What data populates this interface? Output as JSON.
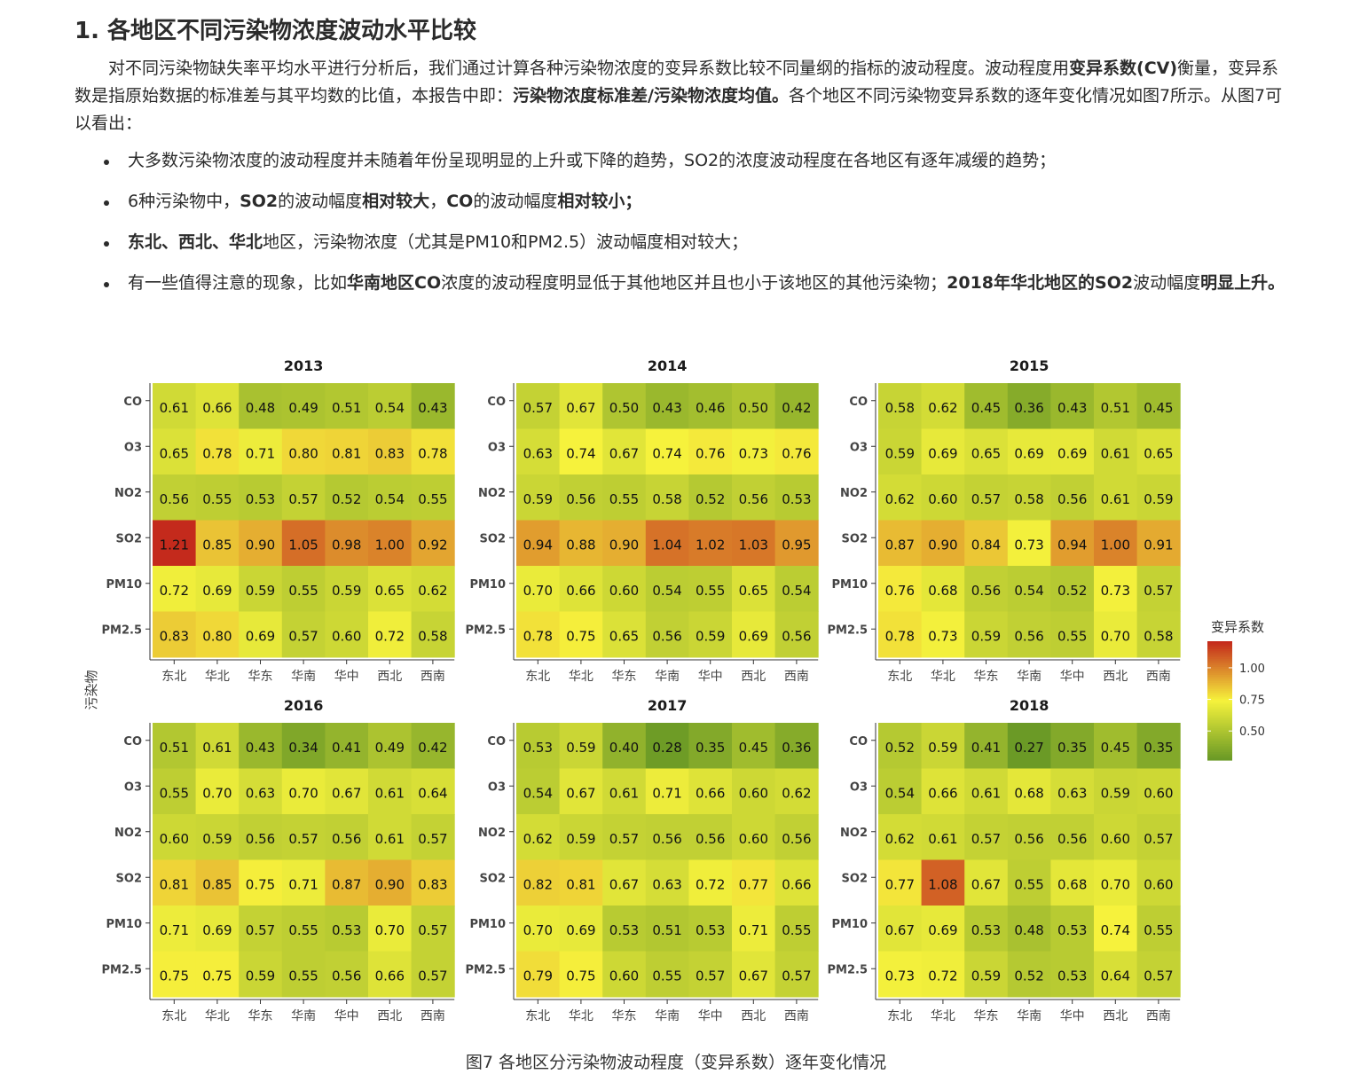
{
  "section": {
    "heading": "1. 各地区不同污染物浓度波动水平比较",
    "intro": [
      {
        "t": "对不同污染物缺失率平均水平进行分析后，我们通过计算各种污染物浓度的变异系数比较不同量纲的指标的波动程度。波动程度用"
      },
      {
        "t": "变异系数(CV)",
        "b": true
      },
      {
        "t": "衡量，变异系数是指原始数据的标准差与其平均数的比值，本报告中即："
      },
      {
        "t": "污染物浓度标准差/污染物浓度均值。",
        "b": true
      },
      {
        "t": "各个地区不同污染物变异系数的逐年变化情况如图7所示。从图7可以看出："
      }
    ],
    "bullets": [
      [
        {
          "t": "大多数污染物浓度的波动程度并未随着年份呈现明显的上升或下降的趋势，SO2的浓度波动程度在各地区有逐年减缓的趋势；"
        }
      ],
      [
        {
          "t": "6种污染物中，"
        },
        {
          "t": "SO2",
          "b": true
        },
        {
          "t": "的波动幅度"
        },
        {
          "t": "相对较大",
          "b": true
        },
        {
          "t": "，"
        },
        {
          "t": "CO",
          "b": true
        },
        {
          "t": "的波动幅度"
        },
        {
          "t": "相对较小；",
          "b": true
        }
      ],
      [
        {
          "t": "东北、西北、华北",
          "b": true
        },
        {
          "t": "地区，污染物浓度（尤其是PM10和PM2.5）波动幅度相对较大；"
        }
      ],
      [
        {
          "t": "有一些值得注意的现象，比如"
        },
        {
          "t": "华南地区CO",
          "b": true
        },
        {
          "t": "浓度的波动程度明显低于其他地区并且也小于该地区的其他污染物；"
        },
        {
          "t": "2018年华北地区的SO2",
          "b": true
        },
        {
          "t": "波动幅度"
        },
        {
          "t": "明显上升。",
          "b": true
        }
      ]
    ]
  },
  "caption": "图7 各地区分污染物波动程度（变异系数）逐年变化情况",
  "chart_data": {
    "type": "heatmap",
    "ylabel": "污染物",
    "xlabel": "",
    "categories": [
      "东北",
      "华北",
      "华东",
      "华南",
      "华中",
      "西北",
      "西南"
    ],
    "pollutants": [
      "CO",
      "O3",
      "NO2",
      "SO2",
      "PM10",
      "PM2.5"
    ],
    "legend": {
      "title": "变异系数",
      "ticks": [
        1.0,
        0.75,
        0.5
      ],
      "tick_labels": [
        "1.00",
        "0.75",
        "0.50"
      ],
      "range": [
        0.27,
        1.21
      ],
      "placement": "right"
    },
    "color_scale": {
      "low": "#6b9a26",
      "mid": "#f6f23c",
      "high": "#c42a1c",
      "mid_value": 0.74
    },
    "panels": [
      {
        "year": "2013",
        "values": [
          [
            0.61,
            0.66,
            0.48,
            0.49,
            0.51,
            0.54,
            0.43
          ],
          [
            0.65,
            0.78,
            0.71,
            0.8,
            0.81,
            0.83,
            0.78
          ],
          [
            0.56,
            0.55,
            0.53,
            0.57,
            0.52,
            0.54,
            0.55
          ],
          [
            1.21,
            0.85,
            0.9,
            1.05,
            0.98,
            1.0,
            0.92
          ],
          [
            0.72,
            0.69,
            0.59,
            0.55,
            0.59,
            0.65,
            0.62
          ],
          [
            0.83,
            0.8,
            0.69,
            0.57,
            0.6,
            0.72,
            0.58
          ]
        ]
      },
      {
        "year": "2014",
        "values": [
          [
            0.57,
            0.67,
            0.5,
            0.43,
            0.46,
            0.5,
            0.42
          ],
          [
            0.63,
            0.74,
            0.67,
            0.74,
            0.76,
            0.73,
            0.76
          ],
          [
            0.59,
            0.56,
            0.55,
            0.58,
            0.52,
            0.56,
            0.53
          ],
          [
            0.94,
            0.88,
            0.9,
            1.04,
            1.02,
            1.03,
            0.95
          ],
          [
            0.7,
            0.66,
            0.6,
            0.54,
            0.55,
            0.65,
            0.54
          ],
          [
            0.78,
            0.75,
            0.65,
            0.56,
            0.59,
            0.69,
            0.56
          ]
        ]
      },
      {
        "year": "2015",
        "values": [
          [
            0.58,
            0.62,
            0.45,
            0.36,
            0.43,
            0.51,
            0.45
          ],
          [
            0.59,
            0.69,
            0.65,
            0.69,
            0.69,
            0.61,
            0.65
          ],
          [
            0.62,
            0.6,
            0.57,
            0.58,
            0.56,
            0.61,
            0.59
          ],
          [
            0.87,
            0.9,
            0.84,
            0.73,
            0.94,
            1.0,
            0.91
          ],
          [
            0.76,
            0.68,
            0.56,
            0.54,
            0.52,
            0.73,
            0.57
          ],
          [
            0.78,
            0.73,
            0.59,
            0.56,
            0.55,
            0.7,
            0.58
          ]
        ]
      },
      {
        "year": "2016",
        "values": [
          [
            0.51,
            0.61,
            0.43,
            0.34,
            0.41,
            0.49,
            0.42
          ],
          [
            0.55,
            0.7,
            0.63,
            0.7,
            0.67,
            0.61,
            0.64
          ],
          [
            0.6,
            0.59,
            0.56,
            0.57,
            0.56,
            0.61,
            0.57
          ],
          [
            0.81,
            0.85,
            0.75,
            0.71,
            0.87,
            0.9,
            0.83
          ],
          [
            0.71,
            0.69,
            0.57,
            0.55,
            0.53,
            0.7,
            0.57
          ],
          [
            0.75,
            0.75,
            0.59,
            0.55,
            0.56,
            0.66,
            0.57
          ]
        ]
      },
      {
        "year": "2017",
        "values": [
          [
            0.53,
            0.59,
            0.4,
            0.28,
            0.35,
            0.45,
            0.36
          ],
          [
            0.54,
            0.67,
            0.61,
            0.71,
            0.66,
            0.6,
            0.62
          ],
          [
            0.62,
            0.59,
            0.57,
            0.56,
            0.56,
            0.6,
            0.56
          ],
          [
            0.82,
            0.81,
            0.67,
            0.63,
            0.72,
            0.77,
            0.66
          ],
          [
            0.7,
            0.69,
            0.53,
            0.51,
            0.53,
            0.71,
            0.55
          ],
          [
            0.79,
            0.75,
            0.6,
            0.55,
            0.57,
            0.67,
            0.57
          ]
        ]
      },
      {
        "year": "2018",
        "values": [
          [
            0.52,
            0.59,
            0.41,
            0.27,
            0.35,
            0.45,
            0.35
          ],
          [
            0.54,
            0.66,
            0.61,
            0.68,
            0.63,
            0.59,
            0.6
          ],
          [
            0.62,
            0.61,
            0.57,
            0.56,
            0.56,
            0.6,
            0.57
          ],
          [
            0.77,
            1.08,
            0.67,
            0.55,
            0.68,
            0.7,
            0.6
          ],
          [
            0.67,
            0.69,
            0.53,
            0.48,
            0.53,
            0.74,
            0.55
          ],
          [
            0.73,
            0.72,
            0.59,
            0.52,
            0.53,
            0.64,
            0.57
          ]
        ]
      }
    ]
  }
}
